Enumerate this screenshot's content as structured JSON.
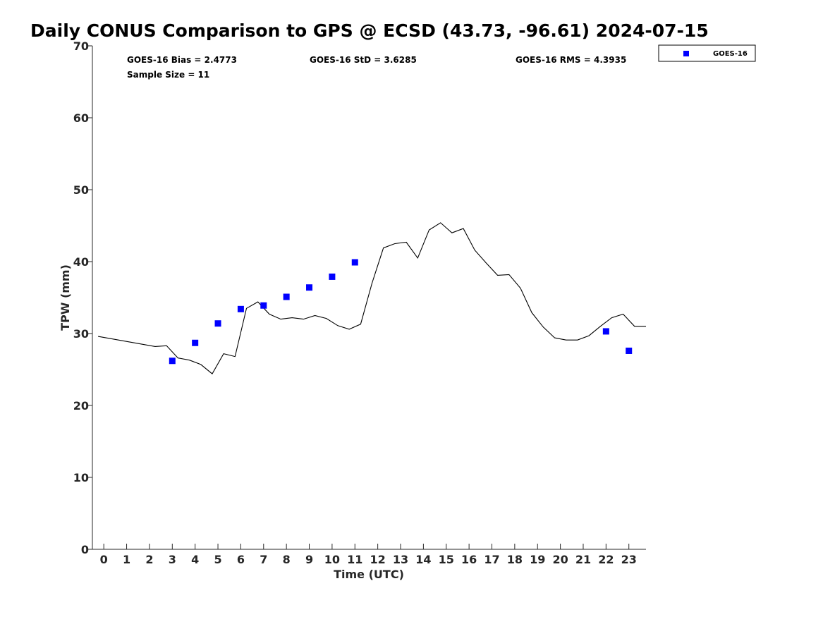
{
  "chart_data": {
    "type": "scatter",
    "title": "Daily CONUS Comparison to GPS @ ECSD (43.73, -96.61) 2024-07-15",
    "xlabel": "Time (UTC)",
    "ylabel": "TPW (mm)",
    "xlim": [
      -0.5,
      23.75
    ],
    "ylim": [
      0,
      70
    ],
    "xticks": [
      0,
      1,
      2,
      3,
      4,
      5,
      6,
      7,
      8,
      9,
      10,
      11,
      12,
      13,
      14,
      15,
      16,
      17,
      18,
      19,
      20,
      21,
      22,
      23
    ],
    "yticks": [
      0,
      10,
      20,
      30,
      40,
      50,
      60,
      70
    ],
    "grid": false,
    "legend_position": "top-right-outside",
    "stats": {
      "bias": "GOES-16 Bias = 2.4773",
      "std": "GOES-16 StD = 3.6285",
      "rms": "GOES-16 RMS = 4.3935",
      "sample_size": "Sample Size = 11"
    },
    "series": [
      {
        "name": "GOES-16",
        "kind": "scatter",
        "marker": "square",
        "color": "#0000ff",
        "x": [
          3,
          4,
          5,
          6,
          7,
          8,
          9,
          10,
          11,
          22,
          23
        ],
        "y": [
          26.2,
          28.7,
          31.4,
          33.4,
          33.9,
          35.1,
          36.4,
          37.9,
          39.9,
          30.3,
          27.6
        ]
      },
      {
        "kind": "line",
        "color": "#000000",
        "x": [
          -0.25,
          2.25,
          2.75,
          3.25,
          3.75,
          4.25,
          4.75,
          5.25,
          5.75,
          6.25,
          6.75,
          7.25,
          7.75,
          8.25,
          8.75,
          9.25,
          9.75,
          10.25,
          10.75,
          11.25,
          11.75,
          12.25,
          12.75,
          13.25,
          13.75,
          14.25,
          14.75,
          15.25,
          15.75,
          16.25,
          16.75,
          17.25,
          17.75,
          18.25,
          18.75,
          19.25,
          19.75,
          20.25,
          20.75,
          21.25,
          21.75,
          22.25,
          22.75,
          23.25,
          23.75
        ],
        "y": [
          29.6,
          28.2,
          28.3,
          26.6,
          26.3,
          25.7,
          24.4,
          27.2,
          26.8,
          33.5,
          34.4,
          32.7,
          32.0,
          32.2,
          32.0,
          32.5,
          32.1,
          31.1,
          30.6,
          31.3,
          37.0,
          41.9,
          42.5,
          42.7,
          40.5,
          44.4,
          45.4,
          44.0,
          44.6,
          41.6,
          39.8,
          38.1,
          38.2,
          36.3,
          32.9,
          30.9,
          29.4,
          29.1,
          29.1,
          29.7,
          31.0,
          32.2,
          32.7,
          31.0,
          31.0
        ]
      }
    ]
  }
}
